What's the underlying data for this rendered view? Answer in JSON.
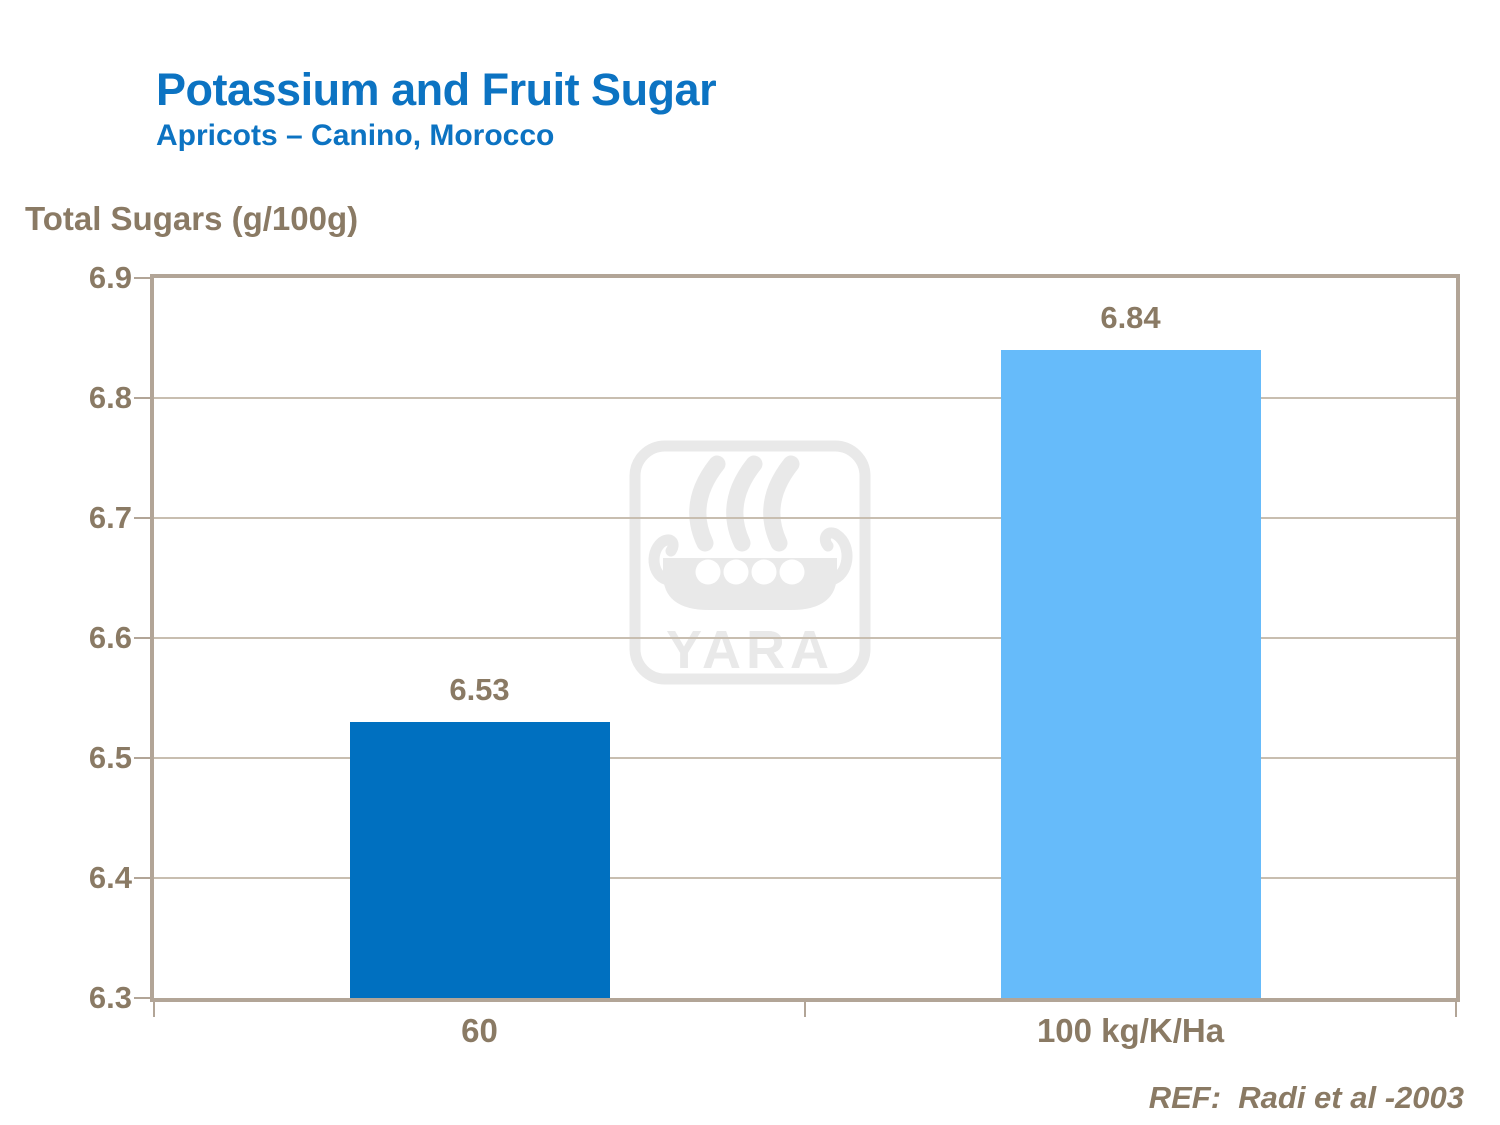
{
  "header": {
    "title": "Potassium and Fruit Sugar",
    "subtitle": "Apricots – Canino, Morocco"
  },
  "chart_data": {
    "type": "bar",
    "title": "Potassium and Fruit Sugar",
    "subtitle": "Apricots – Canino, Morocco",
    "ylabel": "Total Sugars (g/100g)",
    "xlabel": "",
    "categories": [
      "60",
      "100 kg/K/Ha"
    ],
    "values": [
      6.53,
      6.84
    ],
    "data_labels": [
      "6.53",
      "6.84"
    ],
    "ylim": [
      6.3,
      6.9
    ],
    "ytick_interval": 0.1,
    "ytick_labels": [
      "6.3",
      "6.4",
      "6.5",
      "6.6",
      "6.7",
      "6.8",
      "6.9"
    ],
    "grid": true,
    "legend": "none",
    "bar_colors": [
      "#0070C0",
      "#66BBFA"
    ]
  },
  "watermark": {
    "name": "yara-logo",
    "text": "YARA",
    "color": "#E9E9E9"
  },
  "footer": {
    "reference": "REF:  Radi et al -2003"
  },
  "colors": {
    "title_blue": "#0C73C2",
    "axis_text_brown": "#8A7A64",
    "plot_border": "#B2A597",
    "gridline": "#C8BEB0",
    "background": "#FFFFFF"
  }
}
